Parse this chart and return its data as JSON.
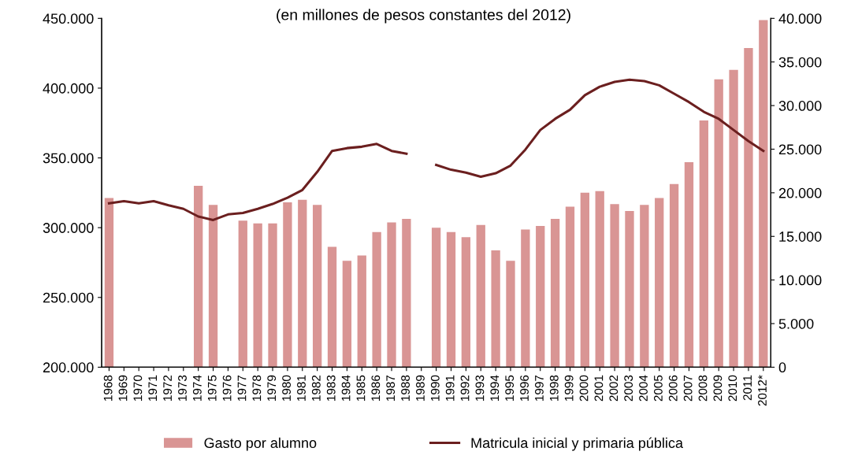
{
  "chart_data": {
    "type": "bar",
    "title": "(en millones de pesos constantes del 2012)",
    "categories": [
      "1968",
      "1969",
      "1970",
      "1971",
      "1972",
      "1973",
      "1974",
      "1975",
      "1976",
      "1977",
      "1978",
      "1979",
      "1980",
      "1981",
      "1982",
      "1983",
      "1984",
      "1985",
      "1986",
      "1987",
      "1988",
      "1989",
      "1990",
      "1991",
      "1992",
      "1993",
      "1994",
      "1995",
      "1996",
      "1997",
      "1998",
      "1999",
      "2000",
      "2001",
      "2002",
      "2003",
      "2004",
      "2005",
      "2006",
      "2007",
      "2008",
      "2009",
      "2010",
      "2011",
      "2012*"
    ],
    "series": [
      {
        "name": "Gasto por alumno",
        "axis": "y2",
        "color": "#d99594",
        "values": [
          19400,
          null,
          null,
          null,
          null,
          null,
          20800,
          18600,
          null,
          16800,
          16500,
          16500,
          18900,
          19200,
          18600,
          13800,
          12200,
          12800,
          15500,
          16600,
          17000,
          null,
          16000,
          15500,
          14900,
          16300,
          13400,
          12200,
          15800,
          16200,
          17000,
          18400,
          20000,
          20200,
          18700,
          17900,
          18600,
          19400,
          21000,
          23500,
          28300,
          33000,
          34100,
          36600,
          39800
        ]
      },
      {
        "name": "Matricula inicial y primaria pública",
        "type": "line",
        "axis": "y",
        "color": "#6b1f1f",
        "values": [
          317500,
          319000,
          317500,
          319000,
          316000,
          313500,
          308000,
          305500,
          309500,
          310500,
          313500,
          317000,
          321500,
          327000,
          340000,
          355000,
          357000,
          358000,
          360000,
          355000,
          353000,
          null,
          345000,
          341500,
          339500,
          336500,
          339000,
          344500,
          356000,
          370000,
          378000,
          384500,
          395000,
          401000,
          404500,
          406000,
          405000,
          402000,
          396000,
          390000,
          383000,
          378000,
          370000,
          362000,
          355000
        ]
      }
    ],
    "ylim": [
      200000,
      450000
    ],
    "yticks": [
      {
        "value": 200000,
        "label": "200.000"
      },
      {
        "value": 250000,
        "label": "250.000"
      },
      {
        "value": 300000,
        "label": "300.000"
      },
      {
        "value": 350000,
        "label": "350.000"
      },
      {
        "value": 400000,
        "label": "400.000"
      },
      {
        "value": 450000,
        "label": "450.000"
      }
    ],
    "y2lim": [
      0,
      40000
    ],
    "y2ticks": [
      0,
      {
        "value": 5000,
        "label": "5.000"
      },
      {
        "value": 10000,
        "label": "10.000"
      },
      {
        "value": 15000,
        "label": "15.000"
      },
      {
        "value": 20000,
        "label": "20.000"
      },
      {
        "value": 25000,
        "label": "25.000"
      },
      {
        "value": 30000,
        "label": "30.000"
      },
      {
        "value": 35000,
        "label": "35.000"
      },
      {
        "value": 40000,
        "label": "40.000"
      }
    ],
    "grid": false,
    "legend": "bottom"
  }
}
